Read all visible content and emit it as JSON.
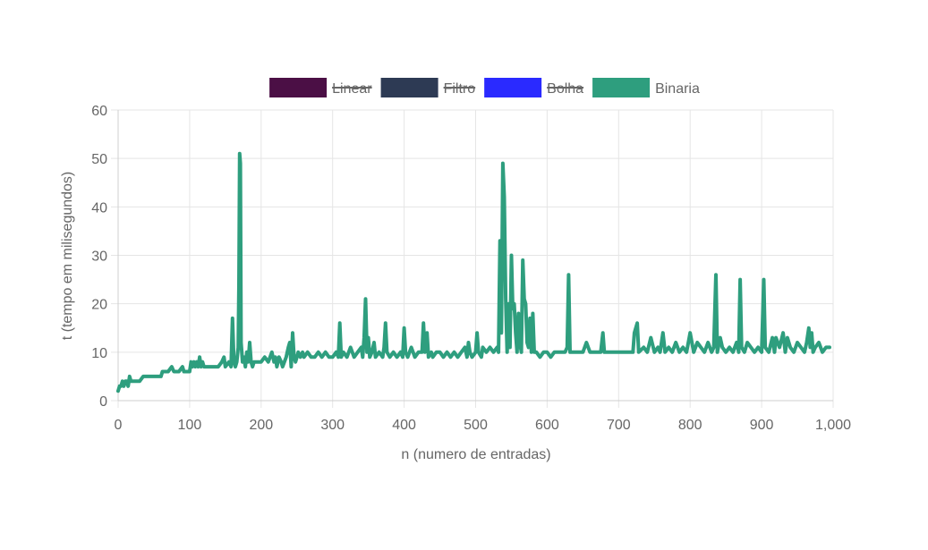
{
  "chart_data": {
    "type": "line",
    "xlabel": "n (numero de entradas)",
    "ylabel": "t (tempo em milisegundos)",
    "xlim": [
      0,
      1000
    ],
    "ylim": [
      0,
      60
    ],
    "x_ticks": [
      0,
      100,
      200,
      300,
      400,
      500,
      600,
      700,
      800,
      900,
      1000
    ],
    "x_tick_labels": [
      "0",
      "100",
      "200",
      "300",
      "400",
      "500",
      "600",
      "700",
      "800",
      "900",
      "1,000"
    ],
    "y_ticks": [
      0,
      10,
      20,
      30,
      40,
      50,
      60
    ],
    "y_tick_labels": [
      "0",
      "10",
      "20",
      "30",
      "40",
      "50",
      "60"
    ],
    "grid": true,
    "legend_position": "top",
    "series": [
      {
        "name": "Linear",
        "color": "#4b0f45",
        "hidden": true,
        "points": []
      },
      {
        "name": "Filtro",
        "color": "#2d3a54",
        "hidden": true,
        "points": []
      },
      {
        "name": "Bolha",
        "color": "#2a2aff",
        "hidden": true,
        "points": []
      },
      {
        "name": "Binaria",
        "color": "#2e9e7e",
        "hidden": false,
        "points": [
          [
            0,
            2
          ],
          [
            2,
            3
          ],
          [
            4,
            3
          ],
          [
            6,
            4
          ],
          [
            8,
            3
          ],
          [
            10,
            4
          ],
          [
            12,
            4
          ],
          [
            14,
            3
          ],
          [
            16,
            5
          ],
          [
            18,
            4
          ],
          [
            20,
            4
          ],
          [
            25,
            4
          ],
          [
            30,
            4
          ],
          [
            35,
            5
          ],
          [
            40,
            5
          ],
          [
            50,
            5
          ],
          [
            60,
            5
          ],
          [
            62,
            6
          ],
          [
            70,
            6
          ],
          [
            75,
            7
          ],
          [
            78,
            6
          ],
          [
            85,
            6
          ],
          [
            90,
            7
          ],
          [
            92,
            6
          ],
          [
            100,
            6
          ],
          [
            102,
            8
          ],
          [
            104,
            7
          ],
          [
            106,
            8
          ],
          [
            108,
            7
          ],
          [
            110,
            8
          ],
          [
            112,
            7
          ],
          [
            114,
            9
          ],
          [
            116,
            7
          ],
          [
            118,
            8
          ],
          [
            120,
            7
          ],
          [
            125,
            7
          ],
          [
            130,
            7
          ],
          [
            135,
            7
          ],
          [
            140,
            7
          ],
          [
            145,
            8
          ],
          [
            148,
            9
          ],
          [
            150,
            7
          ],
          [
            155,
            8
          ],
          [
            158,
            7
          ],
          [
            160,
            17
          ],
          [
            162,
            8
          ],
          [
            164,
            7
          ],
          [
            166,
            8
          ],
          [
            168,
            11
          ],
          [
            169,
            24
          ],
          [
            170,
            51
          ],
          [
            171,
            49
          ],
          [
            172,
            12
          ],
          [
            174,
            8
          ],
          [
            176,
            9
          ],
          [
            178,
            7
          ],
          [
            180,
            10
          ],
          [
            182,
            8
          ],
          [
            184,
            12
          ],
          [
            186,
            8
          ],
          [
            188,
            7
          ],
          [
            190,
            8
          ],
          [
            195,
            8
          ],
          [
            200,
            8
          ],
          [
            205,
            9
          ],
          [
            210,
            8
          ],
          [
            215,
            10
          ],
          [
            218,
            8
          ],
          [
            220,
            9
          ],
          [
            222,
            7
          ],
          [
            225,
            9
          ],
          [
            228,
            8
          ],
          [
            230,
            7
          ],
          [
            235,
            9
          ],
          [
            238,
            11
          ],
          [
            240,
            12
          ],
          [
            242,
            7
          ],
          [
            244,
            14
          ],
          [
            246,
            9
          ],
          [
            248,
            8
          ],
          [
            250,
            9
          ],
          [
            252,
            10
          ],
          [
            255,
            9
          ],
          [
            258,
            10
          ],
          [
            260,
            9
          ],
          [
            265,
            10
          ],
          [
            270,
            9
          ],
          [
            275,
            9
          ],
          [
            280,
            10
          ],
          [
            285,
            9
          ],
          [
            290,
            10
          ],
          [
            295,
            9
          ],
          [
            300,
            9
          ],
          [
            305,
            10
          ],
          [
            308,
            9
          ],
          [
            310,
            16
          ],
          [
            312,
            9
          ],
          [
            315,
            10
          ],
          [
            320,
            9
          ],
          [
            325,
            11
          ],
          [
            330,
            9
          ],
          [
            335,
            10
          ],
          [
            340,
            11
          ],
          [
            342,
            9
          ],
          [
            344,
            13
          ],
          [
            346,
            21
          ],
          [
            348,
            10
          ],
          [
            350,
            13
          ],
          [
            352,
            9
          ],
          [
            355,
            10
          ],
          [
            358,
            12
          ],
          [
            360,
            9
          ],
          [
            365,
            10
          ],
          [
            370,
            9
          ],
          [
            372,
            11
          ],
          [
            374,
            16
          ],
          [
            376,
            10
          ],
          [
            380,
            9
          ],
          [
            385,
            10
          ],
          [
            390,
            9
          ],
          [
            395,
            10
          ],
          [
            398,
            9
          ],
          [
            400,
            15
          ],
          [
            402,
            10
          ],
          [
            405,
            9
          ],
          [
            410,
            11
          ],
          [
            415,
            9
          ],
          [
            420,
            10
          ],
          [
            425,
            10
          ],
          [
            427,
            16
          ],
          [
            429,
            10
          ],
          [
            432,
            14
          ],
          [
            434,
            9
          ],
          [
            438,
            10
          ],
          [
            440,
            9
          ],
          [
            445,
            10
          ],
          [
            450,
            10
          ],
          [
            455,
            9
          ],
          [
            460,
            10
          ],
          [
            465,
            9
          ],
          [
            470,
            10
          ],
          [
            475,
            9
          ],
          [
            480,
            10
          ],
          [
            485,
            11
          ],
          [
            488,
            9
          ],
          [
            490,
            12
          ],
          [
            492,
            10
          ],
          [
            495,
            9
          ],
          [
            500,
            10
          ],
          [
            502,
            14
          ],
          [
            504,
            10
          ],
          [
            508,
            9
          ],
          [
            510,
            11
          ],
          [
            515,
            10
          ],
          [
            520,
            11
          ],
          [
            525,
            10
          ],
          [
            530,
            11
          ],
          [
            532,
            10
          ],
          [
            534,
            33
          ],
          [
            536,
            14
          ],
          [
            538,
            49
          ],
          [
            540,
            42
          ],
          [
            542,
            21
          ],
          [
            544,
            10
          ],
          [
            546,
            20
          ],
          [
            548,
            11
          ],
          [
            550,
            30
          ],
          [
            552,
            19
          ],
          [
            554,
            20
          ],
          [
            556,
            14
          ],
          [
            558,
            10
          ],
          [
            560,
            18
          ],
          [
            562,
            12
          ],
          [
            564,
            10
          ],
          [
            566,
            29
          ],
          [
            568,
            21
          ],
          [
            570,
            20
          ],
          [
            572,
            12
          ],
          [
            574,
            11
          ],
          [
            576,
            17
          ],
          [
            578,
            10
          ],
          [
            580,
            18
          ],
          [
            582,
            10
          ],
          [
            585,
            10
          ],
          [
            590,
            9
          ],
          [
            595,
            10
          ],
          [
            600,
            10
          ],
          [
            605,
            9
          ],
          [
            610,
            10
          ],
          [
            615,
            10
          ],
          [
            620,
            10
          ],
          [
            625,
            10
          ],
          [
            628,
            11
          ],
          [
            630,
            26
          ],
          [
            632,
            10
          ],
          [
            640,
            10
          ],
          [
            650,
            10
          ],
          [
            655,
            12
          ],
          [
            660,
            10
          ],
          [
            670,
            10
          ],
          [
            675,
            10
          ],
          [
            678,
            14
          ],
          [
            680,
            10
          ],
          [
            690,
            10
          ],
          [
            700,
            10
          ],
          [
            710,
            10
          ],
          [
            720,
            10
          ],
          [
            722,
            14
          ],
          [
            726,
            16
          ],
          [
            728,
            10
          ],
          [
            735,
            11
          ],
          [
            740,
            10
          ],
          [
            745,
            13
          ],
          [
            750,
            10
          ],
          [
            755,
            11
          ],
          [
            758,
            10
          ],
          [
            762,
            14
          ],
          [
            765,
            10
          ],
          [
            770,
            11
          ],
          [
            775,
            10
          ],
          [
            780,
            12
          ],
          [
            785,
            10
          ],
          [
            790,
            11
          ],
          [
            795,
            10
          ],
          [
            800,
            14
          ],
          [
            805,
            10
          ],
          [
            810,
            12
          ],
          [
            815,
            11
          ],
          [
            820,
            10
          ],
          [
            825,
            12
          ],
          [
            830,
            10
          ],
          [
            833,
            11
          ],
          [
            836,
            26
          ],
          [
            838,
            10
          ],
          [
            842,
            13
          ],
          [
            845,
            11
          ],
          [
            850,
            10
          ],
          [
            855,
            11
          ],
          [
            860,
            10
          ],
          [
            865,
            12
          ],
          [
            868,
            10
          ],
          [
            870,
            25
          ],
          [
            872,
            11
          ],
          [
            876,
            10
          ],
          [
            880,
            12
          ],
          [
            885,
            11
          ],
          [
            890,
            10
          ],
          [
            895,
            11
          ],
          [
            900,
            10
          ],
          [
            903,
            25
          ],
          [
            905,
            11
          ],
          [
            910,
            10
          ],
          [
            915,
            13
          ],
          [
            918,
            10
          ],
          [
            920,
            13
          ],
          [
            925,
            11
          ],
          [
            930,
            14
          ],
          [
            933,
            10
          ],
          [
            936,
            13
          ],
          [
            940,
            11
          ],
          [
            945,
            10
          ],
          [
            950,
            12
          ],
          [
            955,
            11
          ],
          [
            960,
            10
          ],
          [
            963,
            12
          ],
          [
            966,
            15
          ],
          [
            968,
            11
          ],
          [
            970,
            14
          ],
          [
            972,
            10
          ],
          [
            975,
            11
          ],
          [
            980,
            12
          ],
          [
            985,
            10
          ],
          [
            990,
            11
          ],
          [
            995,
            11
          ]
        ]
      }
    ]
  }
}
